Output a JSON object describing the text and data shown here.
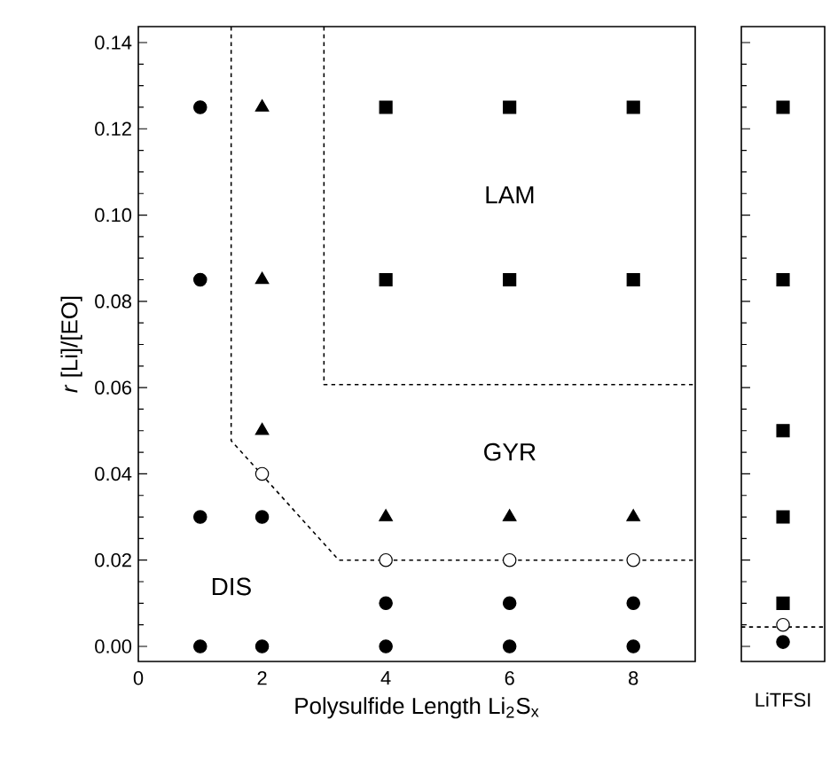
{
  "chart_data": [
    {
      "type": "scatter",
      "xlabel": "Polysulfide Length Li$_{2}$S$_{x}$",
      "ylabel": "*r* [Li]/[EO]",
      "xlim": [
        0,
        9
      ],
      "xticks": [
        0,
        2,
        4,
        6,
        8
      ],
      "ylim": [
        -0.0035,
        0.1437
      ],
      "yticks": [
        {
          "value": 0,
          "label": "0.00"
        },
        {
          "value": 0.02,
          "label": "0.02"
        },
        {
          "value": 0.04,
          "label": "0.04"
        },
        {
          "value": 0.06,
          "label": "0.06"
        },
        {
          "value": 0.08,
          "label": "0.08"
        },
        {
          "value": 0.1,
          "label": "0.10"
        },
        {
          "value": 0.12,
          "label": "0.12"
        },
        {
          "value": 0.14,
          "label": "0.14"
        }
      ],
      "series": [
        {
          "marker": "circle",
          "color": "#000000",
          "x": [
            1,
            1,
            1,
            1,
            2,
            2,
            4,
            4,
            6,
            6,
            8,
            8
          ],
          "values": [
            0,
            0.03,
            0.085,
            0.125,
            0,
            0.03,
            0,
            0.01,
            0,
            0.01,
            0,
            0.01
          ]
        },
        {
          "marker": "circle",
          "color": "#ffffff",
          "x": [
            2,
            4,
            6,
            8
          ],
          "values": [
            0.04,
            0.02,
            0.02,
            0.02
          ]
        },
        {
          "marker": "triangle",
          "color": "#000000",
          "x": [
            2,
            2,
            2,
            4,
            6,
            8
          ],
          "values": [
            0.05,
            0.085,
            0.125,
            0.03,
            0.03,
            0.03
          ]
        },
        {
          "marker": "square",
          "color": "#000000",
          "x": [
            4,
            4,
            6,
            6,
            8,
            8
          ],
          "values": [
            0.085,
            0.125,
            0.085,
            0.125,
            0.085,
            0.125
          ]
        },
        {
          "type": "line",
          "line_style": "dashed",
          "marker": "none",
          "color": "#000000",
          "x": [
            1.5,
            1.5,
            3.24,
            9
          ],
          "values": [
            0.1437,
            0.0477,
            0.02,
            0.02
          ]
        },
        {
          "type": "line",
          "line_style": "dashed",
          "marker": "none",
          "color": "#000000",
          "x": [
            3,
            3,
            9
          ],
          "values": [
            0.1437,
            0.0607,
            0.0607
          ]
        }
      ],
      "annotations": [
        "LAM",
        "GYR",
        "DIS"
      ]
    },
    {
      "type": "scatter",
      "categories": [
        "LiTFSI"
      ],
      "ylim": [
        -0.0035,
        0.1437
      ],
      "yticks": [
        0.0,
        0.02,
        0.04,
        0.06,
        0.08,
        0.1,
        0.12,
        0.14
      ],
      "tick_labels": "x",
      "series": [
        {
          "marker": "circle",
          "color": "#000000",
          "x": [
            "LiTFSI"
          ],
          "values": [
            0.001
          ]
        },
        {
          "marker": "circle",
          "color": "#ffffff",
          "x": [
            "LiTFSI"
          ],
          "values": [
            0.005
          ]
        },
        {
          "marker": "square",
          "color": "#000000",
          "x": [
            "LiTFSI",
            "LiTFSI",
            "LiTFSI",
            "LiTFSI",
            "LiTFSI"
          ],
          "values": [
            0.01,
            0.03,
            0.05,
            0.085,
            0.125
          ]
        }
      ],
      "ref_lines": [
        {
          "axis": "y",
          "value": 0.0045,
          "line_style": "dashed"
        }
      ]
    }
  ]
}
